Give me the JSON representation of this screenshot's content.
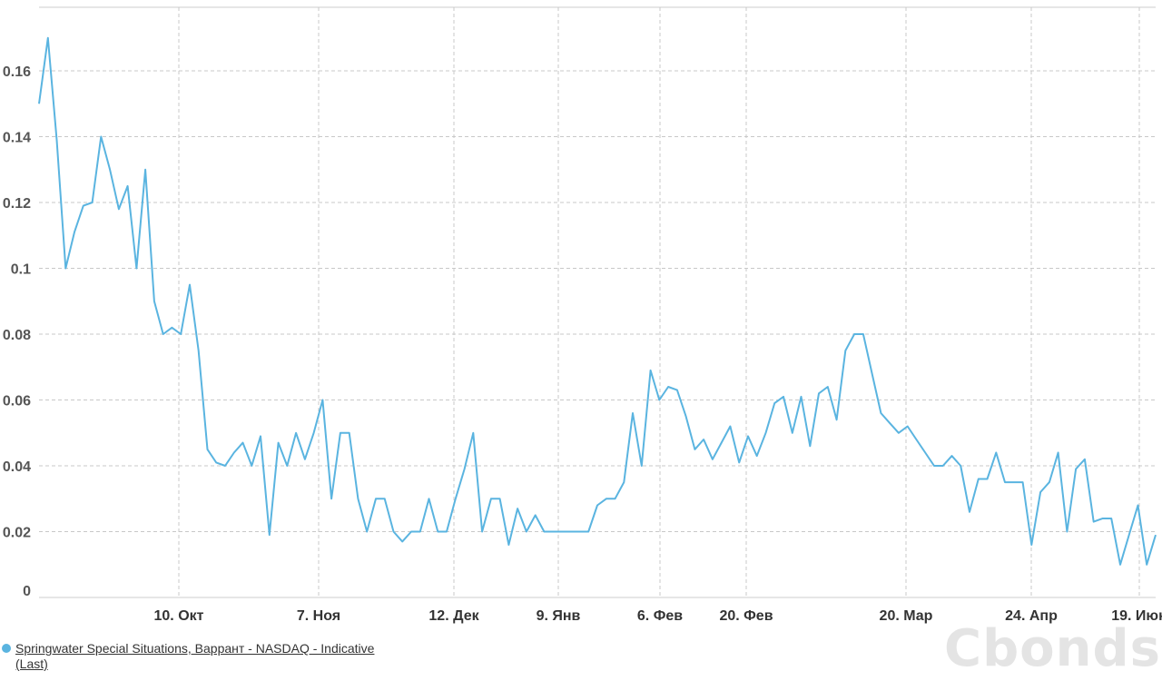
{
  "chart_data": {
    "type": "line",
    "y_ticks": [
      "0",
      "0.02",
      "0.04",
      "0.06",
      "0.08",
      "0.1",
      "0.12",
      "0.14",
      "0.16"
    ],
    "x_ticks": [
      "10. Окт",
      "7. Ноя",
      "12. Дек",
      "9. Янв",
      "6. Фев",
      "20. Фев",
      "20. Мар",
      "24. Апр",
      "19. Июн"
    ],
    "ylim": [
      0,
      0.175
    ],
    "grid": true,
    "legend_position": "bottom-left",
    "series": [
      {
        "name": "Springwater Special Situations, Варрант - NASDAQ - Indicative (Last)",
        "color": "#5ab4e0",
        "values": [
          0.15,
          0.17,
          0.139,
          0.1,
          0.111,
          0.119,
          0.12,
          0.14,
          0.13,
          0.118,
          0.125,
          0.1,
          0.13,
          0.09,
          0.08,
          0.082,
          0.08,
          0.095,
          0.075,
          0.045,
          0.041,
          0.04,
          0.044,
          0.047,
          0.04,
          0.049,
          0.019,
          0.047,
          0.04,
          0.05,
          0.042,
          0.05,
          0.06,
          0.03,
          0.05,
          0.05,
          0.03,
          0.02,
          0.03,
          0.03,
          0.02,
          0.017,
          0.02,
          0.02,
          0.03,
          0.02,
          0.02,
          0.03,
          0.039,
          0.05,
          0.02,
          0.03,
          0.03,
          0.016,
          0.027,
          0.02,
          0.025,
          0.02,
          0.02,
          0.02,
          0.02,
          0.02,
          0.02,
          0.028,
          0.03,
          0.03,
          0.035,
          0.056,
          0.04,
          0.069,
          0.06,
          0.064,
          0.063,
          0.055,
          0.045,
          0.048,
          0.042,
          0.047,
          0.052,
          0.041,
          0.049,
          0.043,
          0.05,
          0.059,
          0.061,
          0.05,
          0.061,
          0.046,
          0.062,
          0.064,
          0.054,
          0.075,
          0.08,
          0.08,
          0.068,
          0.056,
          0.053,
          0.05,
          0.052,
          0.048,
          0.044,
          0.04,
          0.04,
          0.043,
          0.04,
          0.026,
          0.036,
          0.036,
          0.044,
          0.035,
          0.035,
          0.035,
          0.016,
          0.032,
          0.035,
          0.044,
          0.02,
          0.039,
          0.042,
          0.023,
          0.024,
          0.024,
          0.01,
          0.019,
          0.028,
          0.01,
          0.019
        ]
      }
    ]
  },
  "legend": {
    "label": "Springwater Special Situations, Варрант - NASDAQ - Indicative (Last)",
    "color": "#5ab4e0"
  },
  "watermark": "Cbonds"
}
